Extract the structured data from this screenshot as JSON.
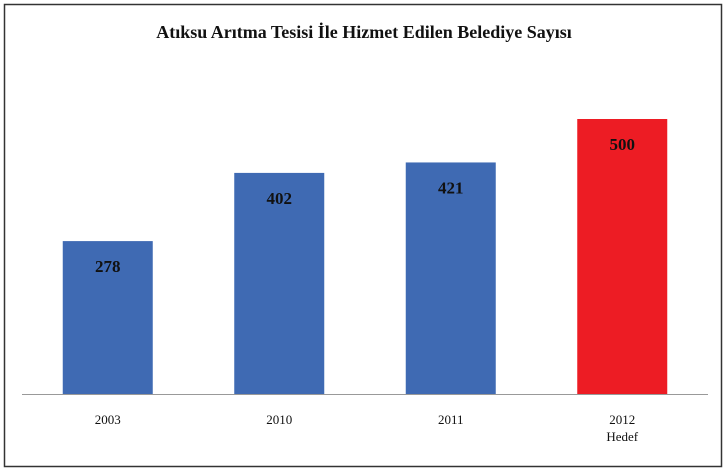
{
  "chart_data": {
    "type": "bar",
    "title": "Atıksu Arıtma Tesisi İle Hizmet Edilen Belediye Sayısı",
    "categories": [
      "2003",
      "2010",
      "2011",
      "2012\nHedef"
    ],
    "values": [
      278,
      402,
      421,
      500
    ],
    "colors": [
      "#3f6ab3",
      "#3f6ab3",
      "#3f6ab3",
      "#ed1c24"
    ],
    "ylim": [
      0,
      500
    ]
  }
}
